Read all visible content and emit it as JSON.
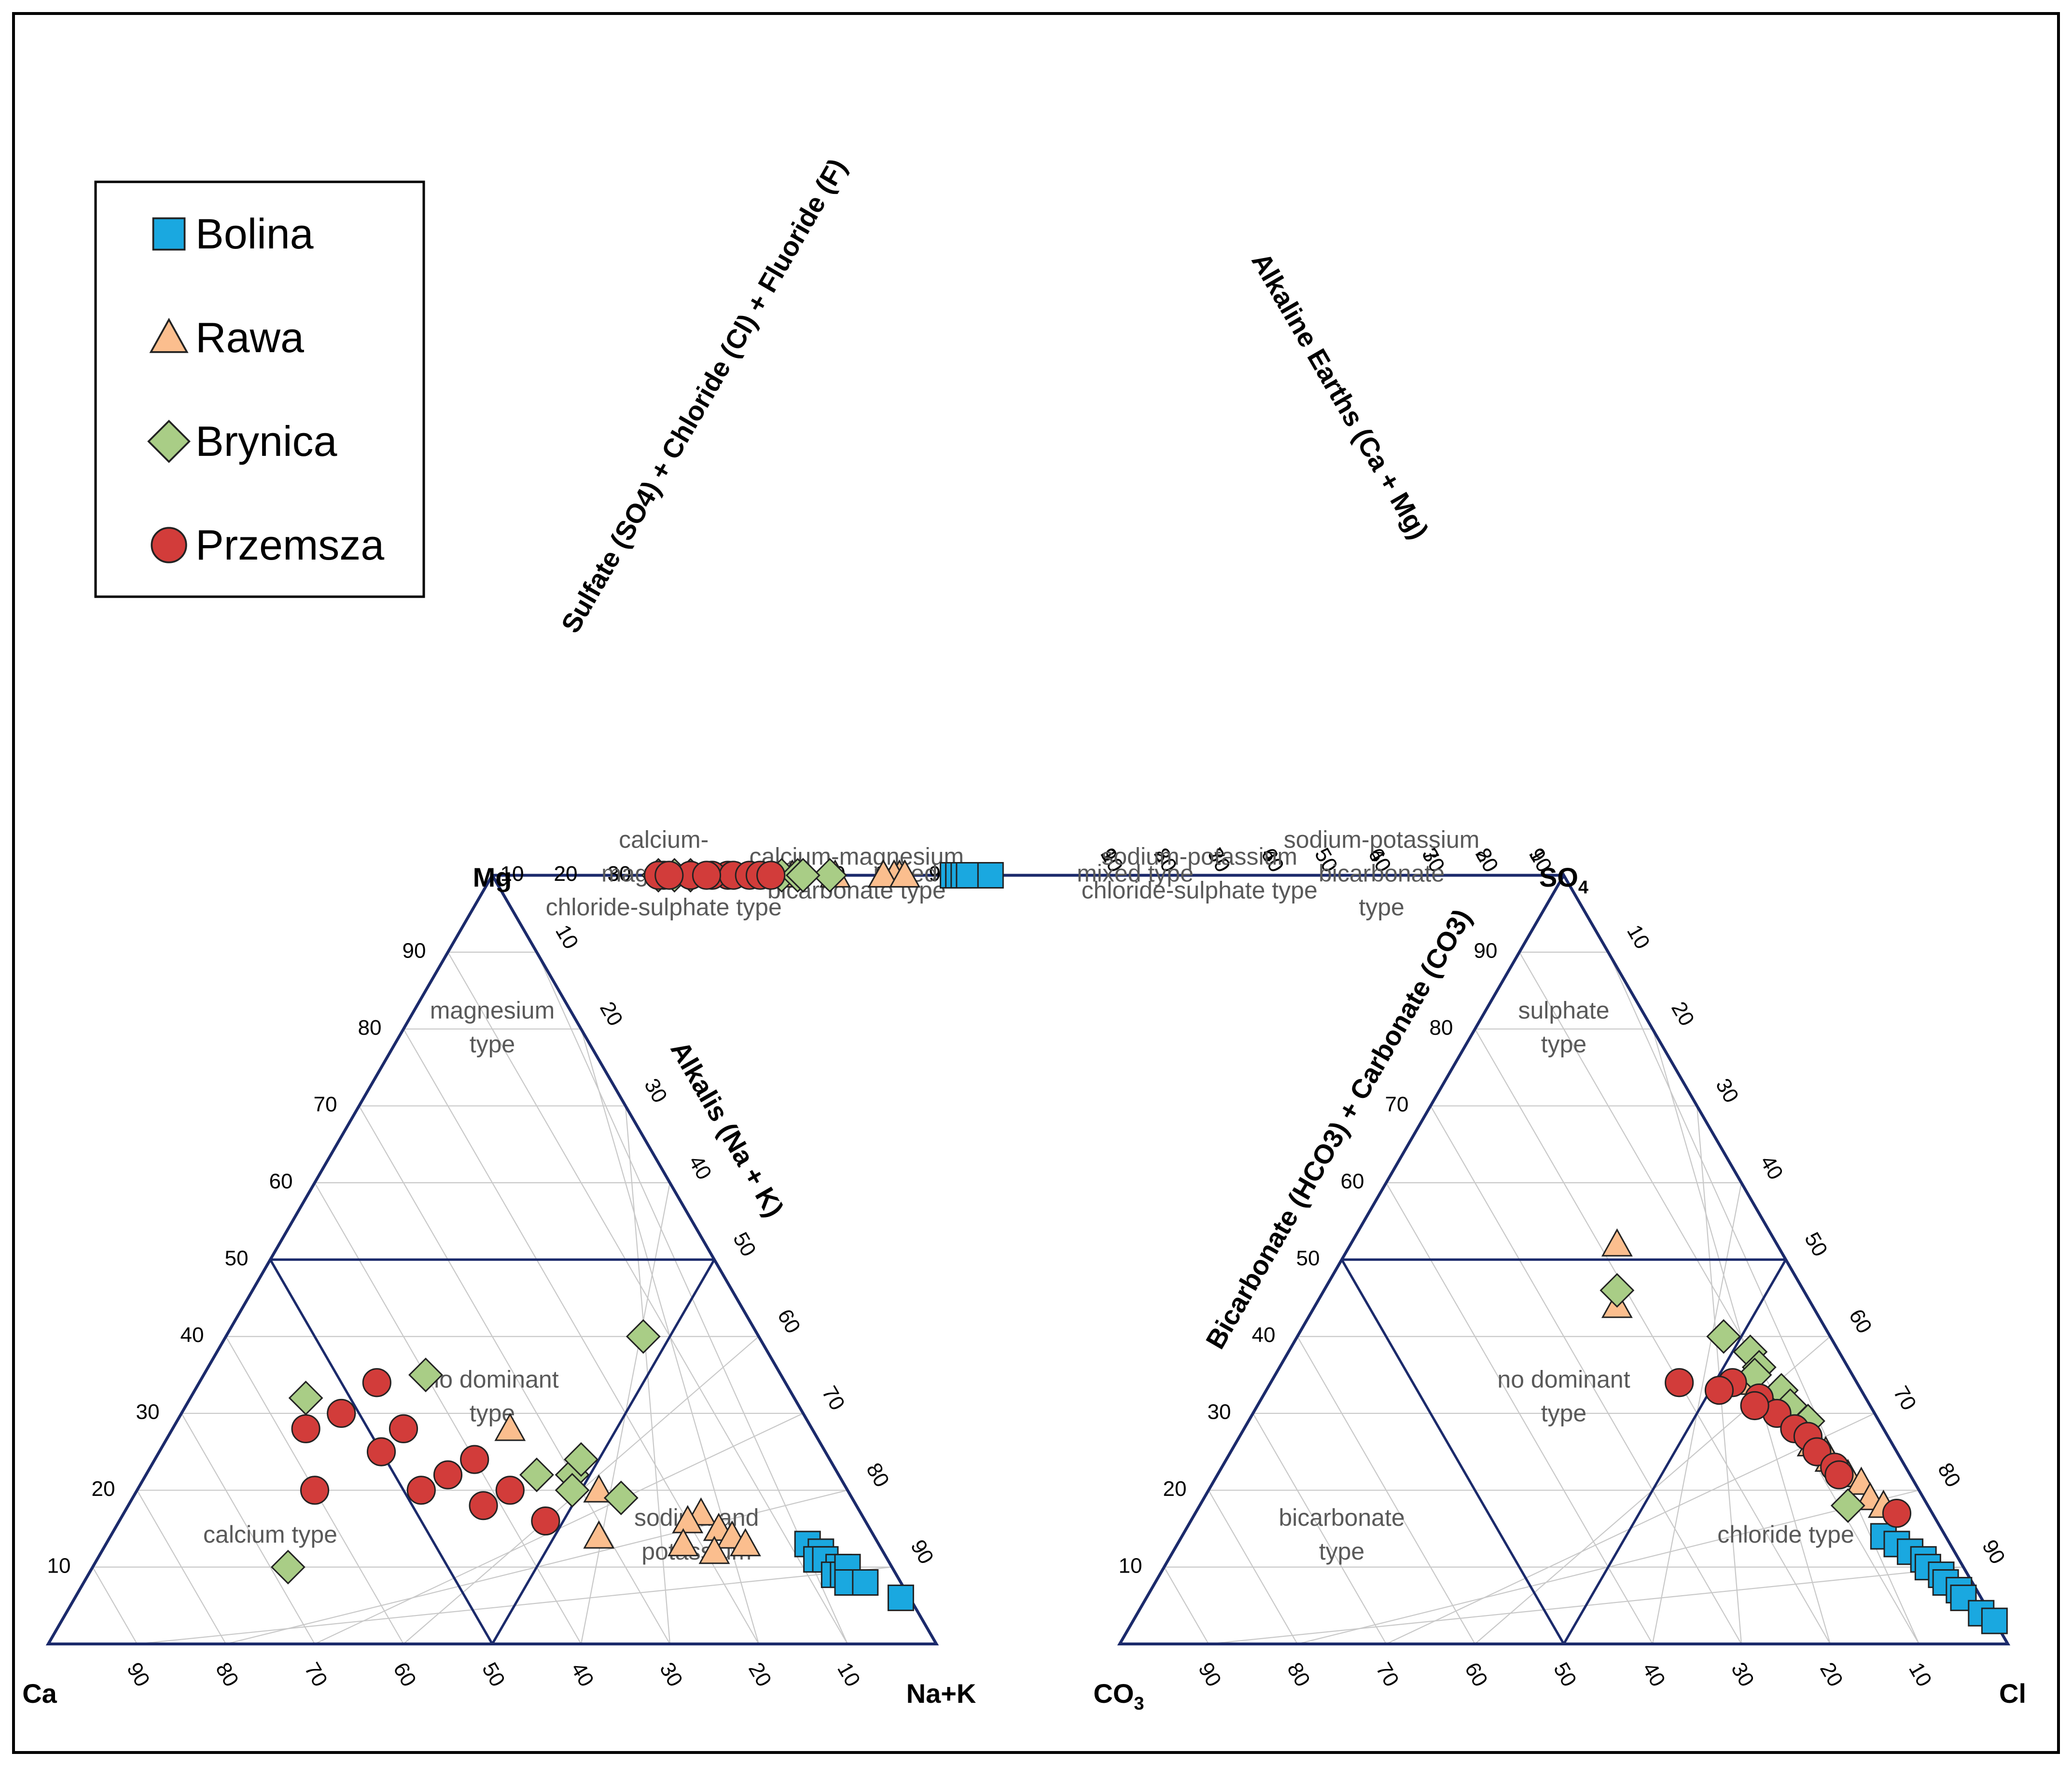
{
  "chart_data": {
    "type": "scatter",
    "subtype": "piper-diagram",
    "legend": [
      {
        "name": "Bolina",
        "marker": "square",
        "color": "#1aa8e0"
      },
      {
        "name": "Rawa",
        "marker": "triangle",
        "color": "#fbbe8e"
      },
      {
        "name": "Brynica",
        "marker": "diamond",
        "color": "#a9cd86"
      },
      {
        "name": "Przemsza",
        "marker": "circle",
        "color": "#d23c3a"
      }
    ],
    "ticks": [
      "10",
      "20",
      "30",
      "40",
      "50",
      "60",
      "70",
      "80",
      "90"
    ],
    "cation_triangle": {
      "corners": {
        "left": "Ca",
        "top": "Mg",
        "right": "Na+K"
      },
      "right_axis_title": "Alkalis (Na + K)",
      "zones": [
        {
          "lines": [
            "magnesium",
            "type"
          ],
          "mg": 80,
          "nak": 10
        },
        {
          "lines": [
            "no dominant",
            "type"
          ],
          "mg": 32,
          "nak": 34
        },
        {
          "lines": [
            "calcium type"
          ],
          "mg": 14,
          "nak": 18
        },
        {
          "lines": [
            "sodium and",
            "potassium"
          ],
          "mg": 14,
          "nak": 66
        }
      ]
    },
    "anion_triangle": {
      "corners": {
        "left": "CO",
        "left_sub": "3",
        "top": "SO",
        "top_sub": "4",
        "right": "Cl"
      },
      "left_axis_title": "Bicarbonate (HCO3) + Carbonate (CO3)",
      "zones": [
        {
          "lines": [
            "sulphate",
            "type"
          ],
          "so4": 80,
          "cl": 10
        },
        {
          "lines": [
            "no dominant",
            "type"
          ],
          "so4": 32,
          "cl": 34
        },
        {
          "lines": [
            "bicarbonate",
            "type"
          ],
          "so4": 14,
          "cl": 18
        },
        {
          "lines": [
            "chloride type"
          ],
          "so4": 14,
          "cl": 68
        }
      ]
    },
    "diamond": {
      "left_axis_title": "Sulfate (SO4) + Chloride (Cl) + Fluoride (F)",
      "right_axis_title": "Alkaline Earths (Ca + Mg)",
      "zones": [
        {
          "lines": [
            "calcium-",
            "magnesium",
            "chloride-sulphate type"
          ],
          "a": 80,
          "b": 88
        },
        {
          "lines": [
            "mixed type"
          ],
          "a": 60,
          "b": 58
        },
        {
          "lines": [
            "calcium-magnesium",
            "bicarbonate type"
          ],
          "a": 50,
          "b": 82
        },
        {
          "lines": [
            "sodium-potassium",
            "chloride-sulphate type"
          ],
          "a": 50,
          "b": 18
        },
        {
          "lines": [
            "mixed type"
          ],
          "a": 40,
          "b": 40
        },
        {
          "lines": [
            "sodium-potassium",
            "bicarbonate",
            "type"
          ],
          "a": 18,
          "b": 16
        }
      ]
    },
    "samples": [
      {
        "site": "Bolina",
        "ca": 8,
        "mg": 13,
        "nak": 79,
        "hco3": 7,
        "so4": 14,
        "cl": 79
      },
      {
        "site": "Bolina",
        "ca": 7,
        "mg": 12,
        "nak": 81,
        "hco3": 6,
        "so4": 13,
        "cl": 81
      },
      {
        "site": "Bolina",
        "ca": 8,
        "mg": 11,
        "nak": 81,
        "hco3": 5,
        "so4": 12,
        "cl": 83
      },
      {
        "site": "Bolina",
        "ca": 7,
        "mg": 11,
        "nak": 82,
        "hco3": 4,
        "so4": 11,
        "cl": 85
      },
      {
        "site": "Bolina",
        "ca": 6,
        "mg": 10,
        "nak": 84,
        "hco3": 4,
        "so4": 10,
        "cl": 86
      },
      {
        "site": "Bolina",
        "ca": 7,
        "mg": 9,
        "nak": 84,
        "hco3": 3,
        "so4": 9,
        "cl": 88
      },
      {
        "site": "Bolina",
        "ca": 6,
        "mg": 9,
        "nak": 85,
        "hco3": 3,
        "so4": 8,
        "cl": 89
      },
      {
        "site": "Bolina",
        "ca": 5,
        "mg": 10,
        "nak": 85,
        "hco3": 2,
        "so4": 7,
        "cl": 91
      },
      {
        "site": "Bolina",
        "ca": 6,
        "mg": 8,
        "nak": 86,
        "hco3": 2,
        "so4": 6,
        "cl": 92
      },
      {
        "site": "Bolina",
        "ca": 4,
        "mg": 8,
        "nak": 88,
        "hco3": 1,
        "so4": 4,
        "cl": 95
      },
      {
        "site": "Bolina",
        "ca": 1,
        "mg": 6,
        "nak": 93,
        "hco3": 0,
        "so4": 3,
        "cl": 97
      },
      {
        "site": "Rawa",
        "ca": 18,
        "mg": 17,
        "nak": 65,
        "hco3": 8,
        "so4": 24,
        "cl": 68
      },
      {
        "site": "Rawa",
        "ca": 17,
        "mg": 15,
        "nak": 68,
        "hco3": 7,
        "so4": 22,
        "cl": 71
      },
      {
        "site": "Rawa",
        "ca": 16,
        "mg": 14,
        "nak": 70,
        "hco3": 6,
        "so4": 21,
        "cl": 73
      },
      {
        "site": "Rawa",
        "ca": 19,
        "mg": 12,
        "nak": 69,
        "hco3": 6,
        "so4": 19,
        "cl": 75
      },
      {
        "site": "Rawa",
        "ca": 15,
        "mg": 13,
        "nak": 72,
        "hco3": 5,
        "so4": 18,
        "cl": 77
      },
      {
        "site": "Rawa",
        "ca": 20,
        "mg": 16,
        "nak": 64,
        "hco3": 9,
        "so4": 26,
        "cl": 65
      },
      {
        "site": "Rawa",
        "ca": 22,
        "mg": 13,
        "nak": 65,
        "hco3": 8,
        "so4": 25,
        "cl": 67
      },
      {
        "site": "Rawa",
        "ca": 34,
        "mg": 28,
        "nak": 38,
        "hco3": 18,
        "so4": 52,
        "cl": 30
      },
      {
        "site": "Rawa",
        "ca": 28,
        "mg": 20,
        "nak": 52,
        "hco3": 12,
        "so4": 34,
        "cl": 54
      },
      {
        "site": "Rawa",
        "ca": 31,
        "mg": 14,
        "nak": 55,
        "hco3": 22,
        "so4": 44,
        "cl": 34
      },
      {
        "site": "Brynica",
        "ca": 30,
        "mg": 22,
        "nak": 48,
        "hco3": 10,
        "so4": 38,
        "cl": 52
      },
      {
        "site": "Brynica",
        "ca": 34,
        "mg": 22,
        "nak": 44,
        "hco3": 10,
        "so4": 36,
        "cl": 54
      },
      {
        "site": "Brynica",
        "ca": 28,
        "mg": 24,
        "nak": 48,
        "hco3": 9,
        "so4": 33,
        "cl": 58
      },
      {
        "site": "Brynica",
        "ca": 31,
        "mg": 20,
        "nak": 49,
        "hco3": 9,
        "so4": 31,
        "cl": 60
      },
      {
        "site": "Brynica",
        "ca": 26,
        "mg": 19,
        "nak": 55,
        "hco3": 8,
        "so4": 29,
        "cl": 63
      },
      {
        "site": "Brynica",
        "ca": 40,
        "mg": 35,
        "nak": 25,
        "hco3": 12,
        "so4": 40,
        "cl": 48
      },
      {
        "site": "Brynica",
        "ca": 55,
        "mg": 32,
        "nak": 13,
        "hco3": 21,
        "so4": 46,
        "cl": 33
      },
      {
        "site": "Brynica",
        "ca": 13,
        "mg": 40,
        "nak": 47,
        "hco3": 11,
        "so4": 35,
        "cl": 54
      },
      {
        "site": "Brynica",
        "ca": 68,
        "mg": 10,
        "nak": 22,
        "hco3": 9,
        "so4": 18,
        "cl": 73
      },
      {
        "site": "Przemsza",
        "ca": 50,
        "mg": 25,
        "nak": 25,
        "hco3": 12,
        "so4": 32,
        "cl": 56
      },
      {
        "site": "Przemsza",
        "ca": 46,
        "mg": 28,
        "nak": 26,
        "hco3": 11,
        "so4": 30,
        "cl": 59
      },
      {
        "site": "Przemsza",
        "ca": 44,
        "mg": 22,
        "nak": 34,
        "hco3": 10,
        "so4": 28,
        "cl": 62
      },
      {
        "site": "Przemsza",
        "ca": 48,
        "mg": 20,
        "nak": 32,
        "hco3": 9,
        "so4": 27,
        "cl": 64
      },
      {
        "site": "Przemsza",
        "ca": 40,
        "mg": 24,
        "nak": 36,
        "hco3": 9,
        "so4": 25,
        "cl": 66
      },
      {
        "site": "Przemsza",
        "ca": 52,
        "mg": 30,
        "nak": 18,
        "hco3": 14,
        "so4": 34,
        "cl": 52
      },
      {
        "site": "Przemsza",
        "ca": 57,
        "mg": 28,
        "nak": 15,
        "hco3": 16,
        "so4": 33,
        "cl": 51
      },
      {
        "site": "Przemsza",
        "ca": 42,
        "mg": 18,
        "nak": 40,
        "hco3": 8,
        "so4": 23,
        "cl": 69
      },
      {
        "site": "Przemsza",
        "ca": 38,
        "mg": 20,
        "nak": 42,
        "hco3": 8,
        "so4": 22,
        "cl": 70
      },
      {
        "site": "Przemsza",
        "ca": 46,
        "mg": 34,
        "nak": 20,
        "hco3": 13,
        "so4": 31,
        "cl": 56
      },
      {
        "site": "Przemsza",
        "ca": 60,
        "mg": 20,
        "nak": 20,
        "hco3": 20,
        "so4": 34,
        "cl": 46
      },
      {
        "site": "Przemsza",
        "ca": 36,
        "mg": 16,
        "nak": 48,
        "hco3": 4,
        "so4": 17,
        "cl": 79
      }
    ]
  }
}
